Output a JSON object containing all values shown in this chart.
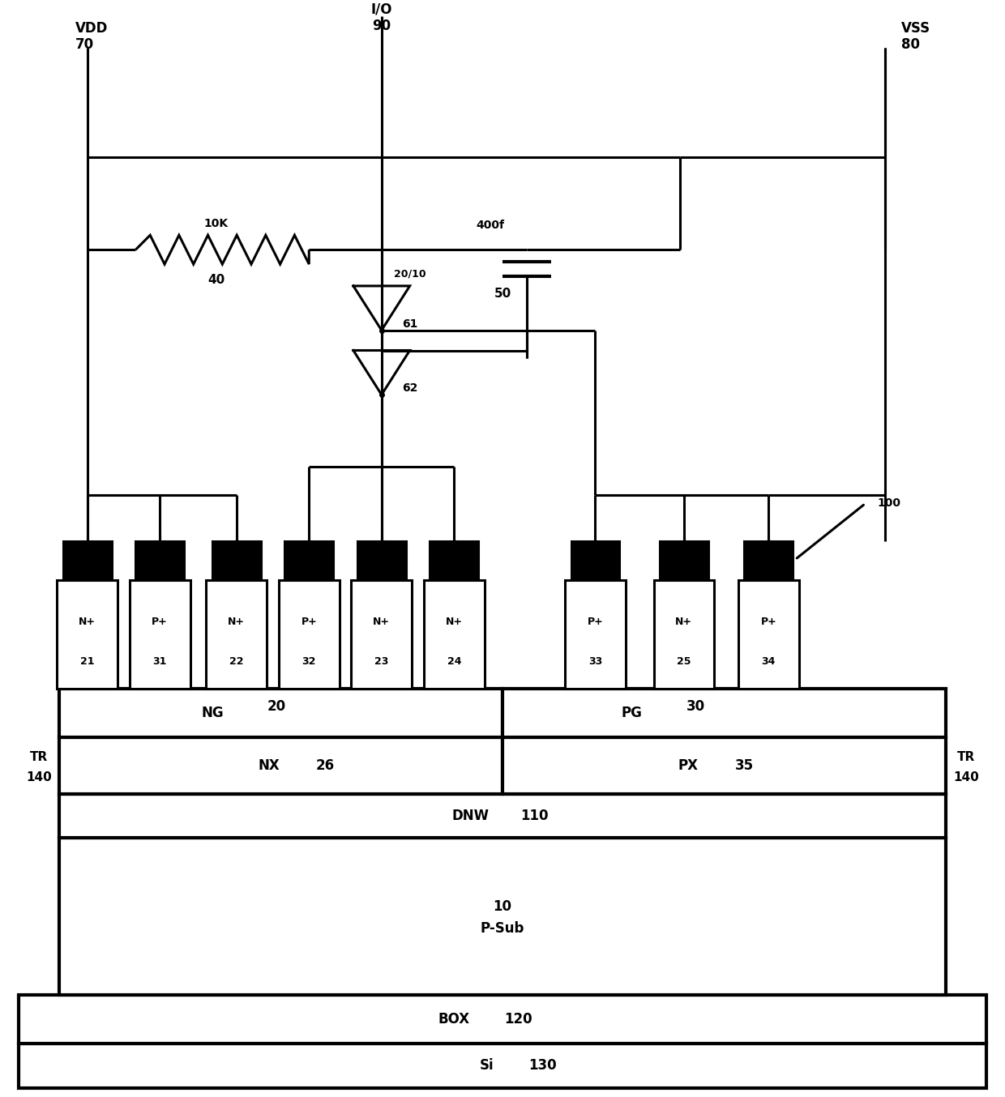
{
  "fig_width": 12.4,
  "fig_height": 13.54,
  "bg_color": "#ffffff",
  "line_color": "#000000",
  "lw": 2.2,
  "lw_thick": 3.0,
  "labels": {
    "VDD": "VDD",
    "VDD_num": "70",
    "IO": "I/O",
    "IO_num": "90",
    "VSS": "VSS",
    "VSS_num": "80",
    "R_label": "10K",
    "R_num": "40",
    "C_label": "400f",
    "C_num": "50",
    "inv1_label": "20/10",
    "inv1_num": "61",
    "inv2_num": "62",
    "arrow_label": "100",
    "NG_label": "NG",
    "NG_num": "20",
    "PG_label": "PG",
    "PG_num": "30",
    "TR_label": "TR",
    "TR_num": "140",
    "NX_label": "NX",
    "NX_num": "26",
    "PX_label": "PX",
    "PX_num": "35",
    "DNW_label": "DNW",
    "DNW_num": "110",
    "PSub_num": "10",
    "PSub_label": "P-Sub",
    "BOX_label": "BOX",
    "BOX_num": "120",
    "Si_label": "Si",
    "Si_num": "130",
    "diffusions": [
      {
        "label": "N+",
        "num": "21"
      },
      {
        "label": "P+",
        "num": "31"
      },
      {
        "label": "N+",
        "num": "22"
      },
      {
        "label": "P+",
        "num": "32"
      },
      {
        "label": "N+",
        "num": "23"
      },
      {
        "label": "N+",
        "num": "24"
      },
      {
        "label": "P+",
        "num": "33"
      },
      {
        "label": "N+",
        "num": "25"
      },
      {
        "label": "P+",
        "num": "34"
      }
    ]
  }
}
